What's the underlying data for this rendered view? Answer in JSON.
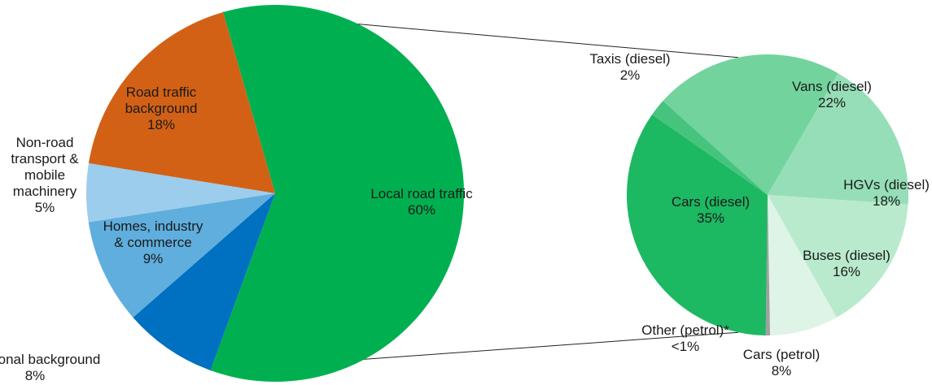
{
  "chart_data": [
    {
      "type": "pie",
      "title": "",
      "slices": [
        {
          "label_lines": [
            "Local road traffic",
            "60%"
          ],
          "value": 60,
          "color": "#00B050"
        },
        {
          "label_lines": [
            "Regional background",
            "8%"
          ],
          "value": 8,
          "color": "#0070C0"
        },
        {
          "label_lines": [
            "Homes, industry",
            "& commerce",
            "9%"
          ],
          "value": 9,
          "color": "#5FAEDD"
        },
        {
          "label_lines": [
            "Non-road",
            "transport &",
            "mobile",
            "machinery",
            "5%"
          ],
          "value": 5,
          "color": "#9CCDED"
        },
        {
          "label_lines": [
            "Road traffic",
            "background",
            "18%"
          ],
          "value": 18,
          "color": "#D26116"
        }
      ]
    },
    {
      "type": "pie",
      "title": "",
      "breakdown_of": "Local road traffic",
      "slices": [
        {
          "label_lines": [
            "Vans (diesel)",
            "22%"
          ],
          "value": 22,
          "color": "#72D39D"
        },
        {
          "label_lines": [
            "HGVs (diesel)",
            "18%"
          ],
          "value": 18,
          "color": "#96DEB7"
        },
        {
          "label_lines": [
            "Buses (diesel)",
            "16%"
          ],
          "value": 16,
          "color": "#B9EACD"
        },
        {
          "label_lines": [
            "Cars (petrol)",
            "8%"
          ],
          "value": 8,
          "color": "#DDF4E6"
        },
        {
          "label_lines": [
            "Other (petrol)*",
            "<1%"
          ],
          "value": 0.5,
          "color": "#A0A0A0"
        },
        {
          "label_lines": [
            "Cars (diesel)",
            "35%"
          ],
          "value": 35,
          "color": "#1DB862"
        },
        {
          "label_lines": [
            "Taxis (diesel)",
            "2%"
          ],
          "value": 2,
          "color": "#46C47E"
        }
      ]
    }
  ]
}
